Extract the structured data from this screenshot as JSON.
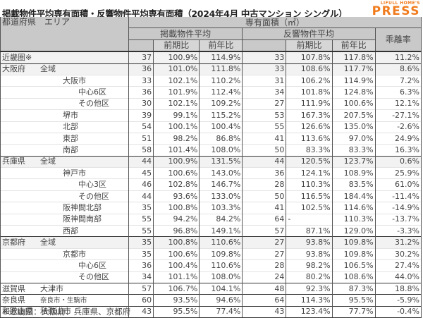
{
  "title": "掲載物件平均専有面積・反響物件平均専有面積（2024年4月 中古マンション シングル）",
  "logo": {
    "top": "LIFULL HOME'S",
    "bottom": "PRESS",
    "color": "#f07c1e"
  },
  "headers": {
    "area": "都道府県　エリア",
    "group": "専有面積（㎡）",
    "listing": "掲載物件平均",
    "response": "反響物件平均",
    "gap": "乖離率",
    "qoq": "前期比",
    "yoy": "前年比"
  },
  "rows": [
    {
      "pref": "近畿圏※",
      "area": "",
      "level": 0,
      "l_avg": "37",
      "l_qoq": "100.9%",
      "l_yoy": "114.9%",
      "r_avg": "33",
      "r_qoq": "107.8%",
      "r_yoy": "117.8%",
      "gap": "11.2%"
    },
    {
      "pref": "大阪府",
      "area": "全域",
      "level": 0,
      "l_avg": "36",
      "l_qoq": "101.0%",
      "l_yoy": "111.8%",
      "r_avg": "33",
      "r_qoq": "108.6%",
      "r_yoy": "117.7%",
      "gap": "8.6%"
    },
    {
      "pref": "",
      "area": "大阪市",
      "level": 1,
      "l_avg": "33",
      "l_qoq": "102.1%",
      "l_yoy": "110.2%",
      "r_avg": "31",
      "r_qoq": "106.2%",
      "r_yoy": "114.9%",
      "gap": "7.2%"
    },
    {
      "pref": "",
      "area": "中心6区",
      "level": 2,
      "l_avg": "36",
      "l_qoq": "101.9%",
      "l_yoy": "112.4%",
      "r_avg": "34",
      "r_qoq": "101.8%",
      "r_yoy": "124.8%",
      "gap": "6.3%"
    },
    {
      "pref": "",
      "area": "その他区",
      "level": 2,
      "l_avg": "30",
      "l_qoq": "102.1%",
      "l_yoy": "109.2%",
      "r_avg": "27",
      "r_qoq": "111.9%",
      "r_yoy": "100.6%",
      "gap": "12.1%"
    },
    {
      "pref": "",
      "area": "堺市",
      "level": 1,
      "l_avg": "39",
      "l_qoq": "99.1%",
      "l_yoy": "115.2%",
      "r_avg": "53",
      "r_qoq": "167.3%",
      "r_yoy": "207.5%",
      "gap": "-27.1%"
    },
    {
      "pref": "",
      "area": "北部",
      "level": 1,
      "l_avg": "54",
      "l_qoq": "100.1%",
      "l_yoy": "100.4%",
      "r_avg": "55",
      "r_qoq": "126.6%",
      "r_yoy": "135.0%",
      "gap": "-2.6%"
    },
    {
      "pref": "",
      "area": "東部",
      "level": 1,
      "l_avg": "51",
      "l_qoq": "98.2%",
      "l_yoy": "86.8%",
      "r_avg": "41",
      "r_qoq": "113.6%",
      "r_yoy": "97.0%",
      "gap": "24.9%"
    },
    {
      "pref": "",
      "area": "南部",
      "level": 1,
      "l_avg": "58",
      "l_qoq": "101.4%",
      "l_yoy": "108.0%",
      "r_avg": "50",
      "r_qoq": "83.3%",
      "r_yoy": "83.3%",
      "gap": "16.3%"
    },
    {
      "pref": "兵庫県",
      "area": "全域",
      "level": 0,
      "l_avg": "44",
      "l_qoq": "100.9%",
      "l_yoy": "131.5%",
      "r_avg": "44",
      "r_qoq": "120.5%",
      "r_yoy": "123.7%",
      "gap": "0.6%"
    },
    {
      "pref": "",
      "area": "神戸市",
      "level": 1,
      "l_avg": "45",
      "l_qoq": "100.6%",
      "l_yoy": "143.0%",
      "r_avg": "36",
      "r_qoq": "124.1%",
      "r_yoy": "108.9%",
      "gap": "25.9%"
    },
    {
      "pref": "",
      "area": "中心3区",
      "level": 2,
      "l_avg": "46",
      "l_qoq": "102.8%",
      "l_yoy": "146.7%",
      "r_avg": "28",
      "r_qoq": "110.3%",
      "r_yoy": "83.5%",
      "gap": "61.0%"
    },
    {
      "pref": "",
      "area": "その他区",
      "level": 2,
      "l_avg": "44",
      "l_qoq": "93.6%",
      "l_yoy": "133.0%",
      "r_avg": "50",
      "r_qoq": "116.5%",
      "r_yoy": "184.4%",
      "gap": "-11.4%"
    },
    {
      "pref": "",
      "area": "阪神間北部",
      "level": 1,
      "l_avg": "35",
      "l_qoq": "100.8%",
      "l_yoy": "103.3%",
      "r_avg": "41",
      "r_qoq": "102.5%",
      "r_yoy": "114.6%",
      "gap": "-14.9%"
    },
    {
      "pref": "",
      "area": "阪神間南部",
      "level": 1,
      "l_avg": "55",
      "l_qoq": "94.2%",
      "l_yoy": "84.2%",
      "r_avg": "64",
      "r_qoq": "-",
      "r_yoy": "110.3%",
      "gap": "-13.7%"
    },
    {
      "pref": "",
      "area": "西部",
      "level": 1,
      "l_avg": "55",
      "l_qoq": "96.8%",
      "l_yoy": "149.1%",
      "r_avg": "57",
      "r_qoq": "87.1%",
      "r_yoy": "129.0%",
      "gap": "-3.3%"
    },
    {
      "pref": "京都府",
      "area": "全域",
      "level": 0,
      "l_avg": "35",
      "l_qoq": "100.8%",
      "l_yoy": "110.6%",
      "r_avg": "27",
      "r_qoq": "93.8%",
      "r_yoy": "109.8%",
      "gap": "31.2%"
    },
    {
      "pref": "",
      "area": "京都市",
      "level": 1,
      "l_avg": "35",
      "l_qoq": "100.6%",
      "l_yoy": "109.8%",
      "r_avg": "27",
      "r_qoq": "93.8%",
      "r_yoy": "109.8%",
      "gap": "30.2%"
    },
    {
      "pref": "",
      "area": "中心6区",
      "level": 2,
      "l_avg": "36",
      "l_qoq": "100.4%",
      "l_yoy": "110.6%",
      "r_avg": "28",
      "r_qoq": "98.2%",
      "r_yoy": "106.5%",
      "gap": "27.4%"
    },
    {
      "pref": "",
      "area": "その他区",
      "level": 2,
      "l_avg": "34",
      "l_qoq": "101.1%",
      "l_yoy": "108.0%",
      "r_avg": "24",
      "r_qoq": "80.2%",
      "r_yoy": "108.6%",
      "gap": "44.0%"
    },
    {
      "pref": "滋賀県",
      "area": "大津市",
      "level": 0,
      "l_avg": "57",
      "l_qoq": "106.7%",
      "l_yoy": "104.1%",
      "r_avg": "48",
      "r_qoq": "92.3%",
      "r_yoy": "87.3%",
      "gap": "18.8%"
    },
    {
      "pref": "奈良県",
      "area": "奈良市・生駒市",
      "level": 0,
      "l_avg": "60",
      "l_qoq": "93.5%",
      "l_yoy": "94.6%",
      "r_avg": "64",
      "r_qoq": "114.3%",
      "r_yoy": "95.5%",
      "gap": "-5.9%"
    },
    {
      "pref": "和歌山県",
      "area": "和歌山市",
      "level": 0,
      "l_avg": "43",
      "l_qoq": "95.5%",
      "l_yoy": "77.4%",
      "r_avg": "43",
      "r_qoq": "123.4%",
      "r_yoy": "77.7%",
      "gap": "-0.4%"
    }
  ],
  "footnote": "※近畿圏：大阪府、兵庫県、京都府"
}
